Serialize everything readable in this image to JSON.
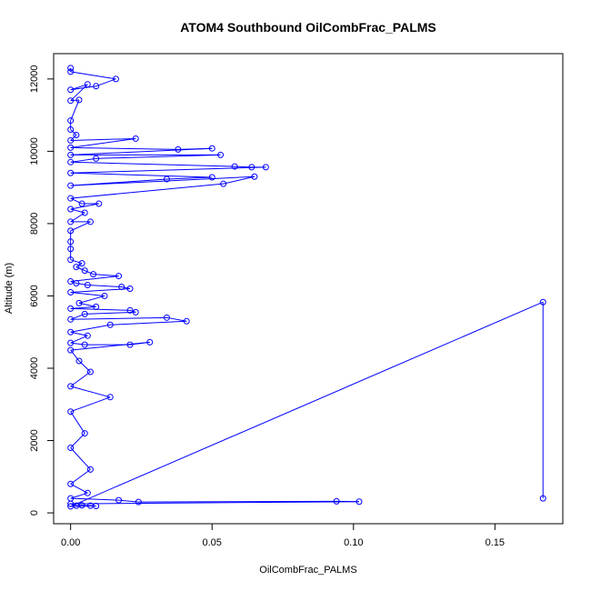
{
  "chart_data": {
    "type": "line",
    "title": "ATOM4 Southbound OilCombFrac_PALMS",
    "xlabel": "OilCombFrac_PALMS",
    "ylabel": "Altitude (m)",
    "xlim": [
      -0.006,
      0.174
    ],
    "ylim": [
      -300,
      12700
    ],
    "xticks": [
      0.0,
      0.05,
      0.1,
      0.15
    ],
    "xtick_labels": [
      "0.00",
      "0.05",
      "0.10",
      "0.15"
    ],
    "yticks": [
      0,
      2000,
      4000,
      6000,
      8000,
      10000,
      12000
    ],
    "ytick_labels": [
      "0",
      "2000",
      "4000",
      "6000",
      "8000",
      "10000",
      "12000"
    ],
    "grid": false,
    "legend": "none",
    "series": [
      {
        "color": "#0000ff",
        "marker": "open-circle",
        "points": [
          [
            0.0,
            12300
          ],
          [
            0.0,
            12200
          ],
          [
            0.016,
            12000
          ],
          [
            0.009,
            11800
          ],
          [
            0.0,
            11700
          ],
          [
            0.006,
            11850
          ],
          [
            0.0,
            11400
          ],
          [
            0.003,
            11420
          ],
          [
            0.0,
            10850
          ],
          [
            0.0,
            10600
          ],
          [
            0.002,
            10450
          ],
          [
            0.0,
            10300
          ],
          [
            0.023,
            10350
          ],
          [
            0.0,
            10100
          ],
          [
            0.038,
            10050
          ],
          [
            0.05,
            10080
          ],
          [
            0.0,
            9900
          ],
          [
            0.053,
            9900
          ],
          [
            0.009,
            9800
          ],
          [
            0.0,
            9700
          ],
          [
            0.058,
            9580
          ],
          [
            0.064,
            9560
          ],
          [
            0.069,
            9560
          ],
          [
            0.0,
            9400
          ],
          [
            0.05,
            9280
          ],
          [
            0.034,
            9230
          ],
          [
            0.0,
            9050
          ],
          [
            0.065,
            9300
          ],
          [
            0.054,
            9100
          ],
          [
            0.0,
            8700
          ],
          [
            0.004,
            8550
          ],
          [
            0.01,
            8550
          ],
          [
            0.0,
            8400
          ],
          [
            0.005,
            8300
          ],
          [
            0.0,
            8050
          ],
          [
            0.007,
            8050
          ],
          [
            0.0,
            7800
          ],
          [
            0.0,
            7500
          ],
          [
            0.0,
            7300
          ],
          [
            0.0,
            7000
          ],
          [
            0.004,
            6900
          ],
          [
            0.002,
            6800
          ],
          [
            0.005,
            6700
          ],
          [
            0.008,
            6600
          ],
          [
            0.017,
            6550
          ],
          [
            0.0,
            6400
          ],
          [
            0.002,
            6350
          ],
          [
            0.006,
            6300
          ],
          [
            0.018,
            6250
          ],
          [
            0.021,
            6200
          ],
          [
            0.0,
            6100
          ],
          [
            0.012,
            6000
          ],
          [
            0.003,
            5800
          ],
          [
            0.009,
            5700
          ],
          [
            0.0,
            5650
          ],
          [
            0.021,
            5600
          ],
          [
            0.023,
            5550
          ],
          [
            0.005,
            5500
          ],
          [
            0.0,
            5350
          ],
          [
            0.034,
            5400
          ],
          [
            0.041,
            5300
          ],
          [
            0.014,
            5200
          ],
          [
            0.0,
            5000
          ],
          [
            0.006,
            4900
          ],
          [
            0.0,
            4700
          ],
          [
            0.005,
            4650
          ],
          [
            0.021,
            4650
          ],
          [
            0.028,
            4720
          ],
          [
            0.0,
            4500
          ],
          [
            0.003,
            4200
          ],
          [
            0.007,
            3900
          ],
          [
            0.0,
            3500
          ],
          [
            0.014,
            3200
          ],
          [
            0.0,
            2800
          ],
          [
            0.005,
            2200
          ],
          [
            0.0,
            1800
          ],
          [
            0.007,
            1200
          ],
          [
            0.0,
            800
          ],
          [
            0.006,
            550
          ],
          [
            0.0,
            400
          ],
          [
            0.017,
            350
          ],
          [
            0.024,
            300
          ],
          [
            0.094,
            320
          ],
          [
            0.102,
            310
          ],
          [
            0.0,
            250
          ],
          [
            0.002,
            200
          ],
          [
            0.004,
            210
          ],
          [
            0.007,
            200
          ],
          [
            0.009,
            190
          ],
          [
            0.0,
            180
          ],
          [
            0.167,
            5830
          ],
          [
            0.167,
            400
          ]
        ]
      }
    ]
  }
}
